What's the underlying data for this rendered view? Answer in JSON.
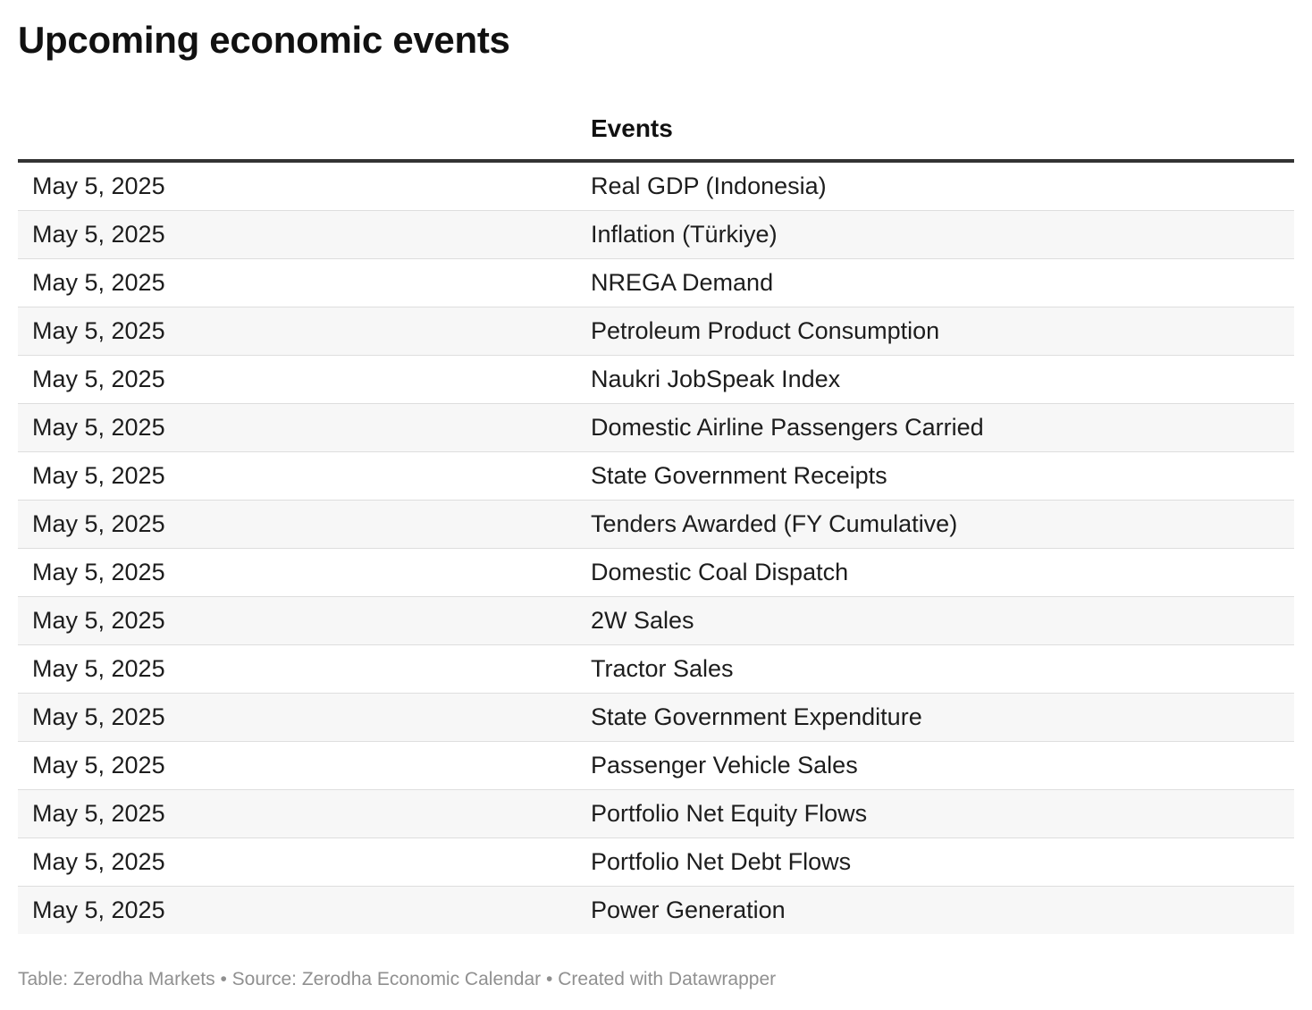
{
  "title": "Upcoming economic events",
  "footer": {
    "table_credit": "Table: Zerodha Markets",
    "separator": " • ",
    "source": "Source: Zerodha Economic Calendar",
    "created_with": "Created with Datawrapper"
  },
  "chart_data": {
    "type": "table",
    "title": "Upcoming economic events",
    "columns": [
      "",
      "Events"
    ],
    "rows": [
      [
        "May 5, 2025",
        "Real GDP (Indonesia)"
      ],
      [
        "May 5, 2025",
        "Inflation (Türkiye)"
      ],
      [
        "May 5, 2025",
        "NREGA Demand"
      ],
      [
        "May 5, 2025",
        "Petroleum Product Consumption"
      ],
      [
        "May 5, 2025",
        "Naukri JobSpeak Index"
      ],
      [
        "May 5, 2025",
        "Domestic Airline Passengers Carried"
      ],
      [
        "May 5, 2025",
        "State Government Receipts"
      ],
      [
        "May 5, 2025",
        "Tenders Awarded (FY Cumulative)"
      ],
      [
        "May 5, 2025",
        "Domestic Coal Dispatch"
      ],
      [
        "May 5, 2025",
        "2W Sales"
      ],
      [
        "May 5, 2025",
        "Tractor Sales"
      ],
      [
        "May 5, 2025",
        "State Government Expenditure"
      ],
      [
        "May 5, 2025",
        "Passenger Vehicle Sales"
      ],
      [
        "May 5, 2025",
        "Portfolio Net Equity Flows"
      ],
      [
        "May 5, 2025",
        "Portfolio Net Debt Flows"
      ],
      [
        "May 5, 2025",
        "Power Generation"
      ]
    ]
  }
}
